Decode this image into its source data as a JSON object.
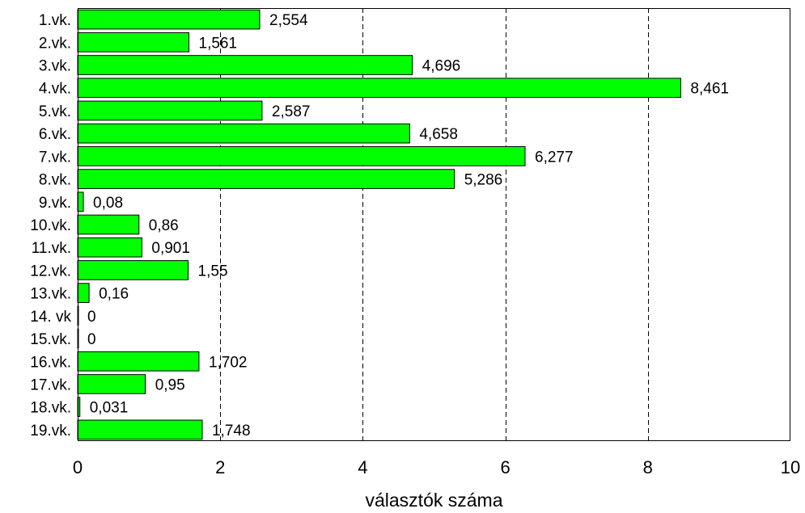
{
  "chart_data": {
    "type": "bar",
    "orientation": "horizontal",
    "categories": [
      "1.vk.",
      "2.vk.",
      "3.vk.",
      "4.vk.",
      "5.vk.",
      "6.vk.",
      "7.vk.",
      "8.vk.",
      "9.vk.",
      "10.vk.",
      "11.vk.",
      "12.vk.",
      "13.vk.",
      "14. vk",
      "15.vk.",
      "16.vk.",
      "17.vk.",
      "18.vk.",
      "19.vk."
    ],
    "values": [
      2.554,
      1.561,
      4.696,
      8.461,
      2.587,
      4.658,
      6.277,
      5.286,
      0.08,
      0.86,
      0.901,
      1.55,
      0.16,
      0,
      0,
      1.702,
      0.95,
      0.031,
      1.748
    ],
    "value_labels": [
      "2,554",
      "1,561",
      "4,696",
      "8,461",
      "2,587",
      "4,658",
      "6,277",
      "5,286",
      "0,08",
      "0,86",
      "0,901",
      "1,55",
      "0,16",
      "0",
      "0",
      "1,702",
      "0,95",
      "0,031",
      "1,748"
    ],
    "xlabel": "választók száma",
    "ylabel": "",
    "xlim": [
      0,
      10
    ],
    "xticks": [
      0,
      2,
      4,
      6,
      8,
      10
    ],
    "xtick_labels": [
      "0",
      "2",
      "4",
      "6",
      "8",
      "10"
    ],
    "grid": "vertical dashed",
    "bar_color": "#00ff00",
    "bar_edge_color": "#000000"
  }
}
